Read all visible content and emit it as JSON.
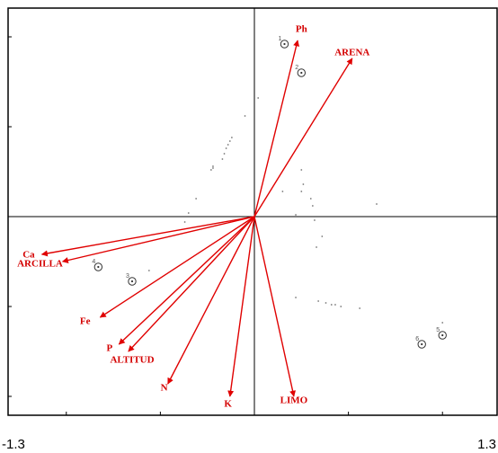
{
  "chart_data": {
    "type": "scatter",
    "subtype": "pca-biplot",
    "title": "",
    "xlabel": "",
    "ylabel": "",
    "xlim": [
      -1.3,
      1.3
    ],
    "ylim": [
      -1.05,
      1.15
    ],
    "x_tick_labels": [
      "-1.3",
      "1.3"
    ],
    "grid": false,
    "legend": "none",
    "colors": {
      "vector": "#e00000",
      "label": "#d40000",
      "frame": "#000000",
      "point": "#777777"
    },
    "vectors": [
      {
        "name": "Ph",
        "x": 0.23,
        "y": 0.98,
        "lx": 0.25,
        "ly": 1.04
      },
      {
        "name": "ARENA",
        "x": 0.52,
        "y": 0.88,
        "lx": 0.52,
        "ly": 0.91
      },
      {
        "name": "Ca",
        "x": -1.13,
        "y": -0.21,
        "lx": -1.2,
        "ly": -0.215
      },
      {
        "name": "ARCILLA",
        "x": -1.02,
        "y": -0.25,
        "lx": -1.14,
        "ly": -0.265
      },
      {
        "name": "Fe",
        "x": -0.82,
        "y": -0.56,
        "lx": -0.9,
        "ly": -0.585
      },
      {
        "name": "P",
        "x": -0.72,
        "y": -0.71,
        "lx": -0.77,
        "ly": -0.735
      },
      {
        "name": "ALTITUD",
        "x": -0.67,
        "y": -0.75,
        "lx": -0.65,
        "ly": -0.8
      },
      {
        "name": "N",
        "x": -0.46,
        "y": -0.93,
        "lx": -0.48,
        "ly": -0.955
      },
      {
        "name": "K",
        "x": -0.13,
        "y": -1.0,
        "lx": -0.14,
        "ly": -1.045
      },
      {
        "name": "LIMO",
        "x": 0.21,
        "y": -1.0,
        "lx": 0.21,
        "ly": -1.025
      }
    ],
    "sites": [
      {
        "label": "1",
        "x": 0.16,
        "y": 0.96
      },
      {
        "label": "2",
        "x": 0.25,
        "y": 0.8
      },
      {
        "label": "3",
        "x": -0.65,
        "y": -0.36
      },
      {
        "label": "4",
        "x": -0.83,
        "y": -0.28
      },
      {
        "label": "5",
        "x": 1.0,
        "y": -0.66
      },
      {
        "label": "6",
        "x": 0.89,
        "y": -0.71
      }
    ],
    "points": [
      [
        0.02,
        0.66
      ],
      [
        -0.05,
        0.56
      ],
      [
        -0.12,
        0.44
      ],
      [
        -0.13,
        0.42
      ],
      [
        -0.14,
        0.4
      ],
      [
        -0.15,
        0.38
      ],
      [
        -0.16,
        0.35
      ],
      [
        -0.17,
        0.32
      ],
      [
        -0.22,
        0.28
      ],
      [
        -0.23,
        0.26
      ],
      [
        -0.22,
        0.27
      ],
      [
        -0.31,
        0.1
      ],
      [
        -0.35,
        0.02
      ],
      [
        -0.37,
        -0.03
      ],
      [
        0.25,
        0.26
      ],
      [
        0.26,
        0.18
      ],
      [
        0.25,
        0.14
      ],
      [
        0.15,
        0.14
      ],
      [
        0.3,
        0.1
      ],
      [
        0.31,
        0.06
      ],
      [
        0.22,
        0.01
      ],
      [
        0.32,
        -0.02
      ],
      [
        0.36,
        -0.11
      ],
      [
        0.33,
        -0.17
      ],
      [
        0.65,
        0.07
      ],
      [
        0.22,
        -0.45
      ],
      [
        0.34,
        -0.47
      ],
      [
        0.38,
        -0.48
      ],
      [
        0.41,
        -0.49
      ],
      [
        0.43,
        -0.49
      ],
      [
        0.46,
        -0.5
      ],
      [
        0.56,
        -0.51
      ],
      [
        -0.56,
        -0.3
      ],
      [
        1.0,
        -0.59
      ]
    ]
  }
}
